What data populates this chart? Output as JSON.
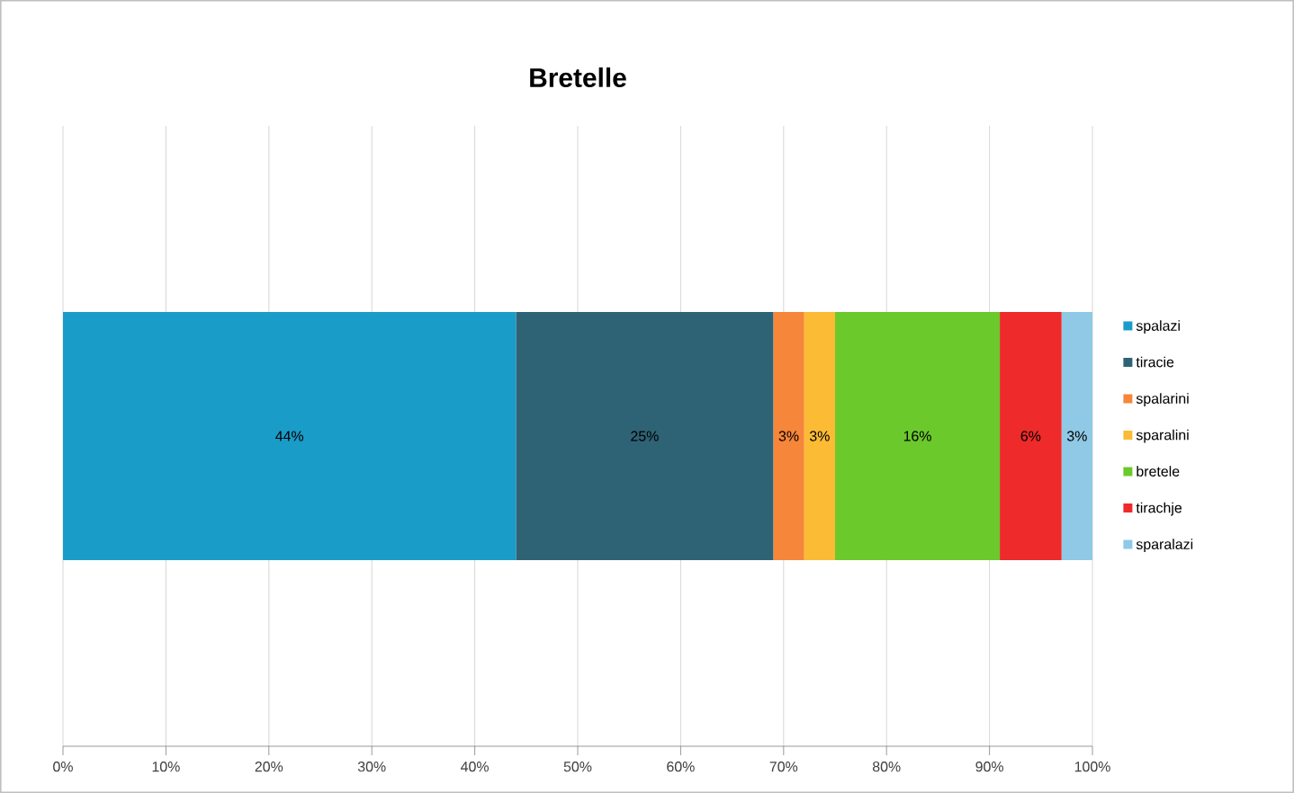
{
  "chart_data": {
    "type": "bar",
    "orientation": "horizontal",
    "stacked": true,
    "title": "Bretelle",
    "categories": [
      null
    ],
    "series": [
      {
        "name": "spalazi",
        "color": "#1a9cc8",
        "values": [
          44
        ],
        "value_labels": [
          "44%"
        ]
      },
      {
        "name": "tiracie",
        "color": "#2e6375",
        "values": [
          25
        ],
        "value_labels": [
          "25%"
        ]
      },
      {
        "name": "spalarini",
        "color": "#f6863a",
        "values": [
          3
        ],
        "value_labels": [
          "3%"
        ]
      },
      {
        "name": "sparalini",
        "color": "#fbbb34",
        "values": [
          3
        ],
        "value_labels": [
          "3%"
        ]
      },
      {
        "name": "bretele",
        "color": "#6bc92c",
        "values": [
          16
        ],
        "value_labels": [
          "16%"
        ]
      },
      {
        "name": "tirachje",
        "color": "#ee2a2a",
        "values": [
          6
        ],
        "value_labels": [
          "6%"
        ]
      },
      {
        "name": "sparalazi",
        "color": "#8fc9e6",
        "values": [
          3
        ],
        "value_labels": [
          "3%"
        ]
      }
    ],
    "xlim": [
      0,
      100
    ],
    "xticks": [
      {
        "value": 0,
        "label": "0%"
      },
      {
        "value": 10,
        "label": "10%"
      },
      {
        "value": 20,
        "label": "20%"
      },
      {
        "value": 30,
        "label": "30%"
      },
      {
        "value": 40,
        "label": "40%"
      },
      {
        "value": 50,
        "label": "50%"
      },
      {
        "value": 60,
        "label": "60%"
      },
      {
        "value": 70,
        "label": "70%"
      },
      {
        "value": 80,
        "label": "80%"
      },
      {
        "value": 90,
        "label": "90%"
      },
      {
        "value": 100,
        "label": "100%"
      }
    ],
    "grid": "x",
    "legend": "right"
  }
}
